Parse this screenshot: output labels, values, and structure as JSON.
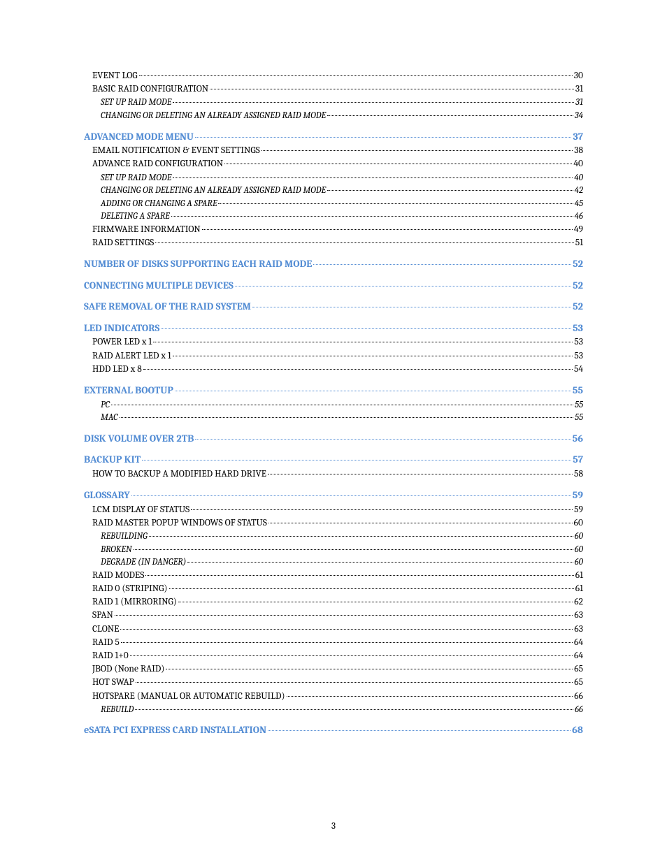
{
  "page_number": "3",
  "colors": {
    "heading": "#548dd4",
    "text": "#000000",
    "bg": "#ffffff"
  },
  "entries": [
    {
      "title": "EVENT LOG",
      "page": "30",
      "level": 2,
      "gap": false,
      "notop": true
    },
    {
      "title": "BASIC RAID CONFIGURATION",
      "page": "31",
      "level": 2,
      "gap": false
    },
    {
      "title": "SET UP RAID MODE",
      "page": "31",
      "level": 3,
      "gap": false
    },
    {
      "title": "CHANGING OR DELETING AN ALREADY ASSIGNED RAID MODE",
      "page": "34",
      "level": 3,
      "gap": false
    },
    {
      "title": "ADVANCED MODE MENU",
      "page": "37",
      "level": 1,
      "gap": true
    },
    {
      "title": "EMAIL NOTIFICATION & EVENT SETTINGS",
      "page": "38",
      "level": 2,
      "gap": false
    },
    {
      "title": "ADVANCE RAID CONFIGURATION",
      "page": "40",
      "level": 2,
      "gap": false
    },
    {
      "title": "SET UP RAID MODE",
      "page": "40",
      "level": 3,
      "gap": false
    },
    {
      "title": "CHANGING OR DELETING AN ALREADY ASSIGNED RAID MODE",
      "page": "42",
      "level": 3,
      "gap": false
    },
    {
      "title": "ADDING OR CHANGING A SPARE",
      "page": "45",
      "level": 3,
      "gap": false
    },
    {
      "title": "DELETING A SPARE",
      "page": "46",
      "level": 3,
      "gap": false
    },
    {
      "title": "FIRMWARE INFORMATION",
      "page": "49",
      "level": 2,
      "gap": false
    },
    {
      "title": "RAID SETTINGS",
      "page": "51",
      "level": 2,
      "gap": false
    },
    {
      "title": "NUMBER OF DISKS SUPPORTING EACH RAID MODE",
      "page": "52",
      "level": 1,
      "gap": true
    },
    {
      "title": "CONNECTING MULTIPLE DEVICES",
      "page": "52",
      "level": 1,
      "gap": true
    },
    {
      "title": "SAFE REMOVAL OF THE RAID SYSTEM",
      "page": "52",
      "level": 1,
      "gap": true
    },
    {
      "title": "LED INDICATORS",
      "page": "53",
      "level": 1,
      "gap": true
    },
    {
      "title": "POWER LED x 1",
      "page": "53",
      "level": 2,
      "gap": false
    },
    {
      "title": "RAID ALERT LED x 1",
      "page": "53",
      "level": 2,
      "gap": false
    },
    {
      "title": "HDD LED x 8",
      "page": "54",
      "level": 2,
      "gap": false
    },
    {
      "title": "EXTERNAL BOOTUP",
      "page": "55",
      "level": 1,
      "gap": true
    },
    {
      "title": "PC",
      "page": "55",
      "level": 3,
      "gap": false
    },
    {
      "title": "MAC",
      "page": "55",
      "level": 3,
      "gap": false
    },
    {
      "title": "DISK VOLUME OVER 2TB",
      "page": "56",
      "level": 1,
      "gap": true
    },
    {
      "title": "BACKUP KIT",
      "page": "57",
      "level": 1,
      "gap": true
    },
    {
      "title": "HOW TO BACKUP A MODIFIED HARD DRIVE",
      "page": "58",
      "level": 2,
      "gap": false
    },
    {
      "title": "GLOSSARY",
      "page": "59",
      "level": 1,
      "gap": true
    },
    {
      "title": "LCM DISPLAY OF STATUS",
      "page": "59",
      "level": 2,
      "gap": false
    },
    {
      "title": "RAID MASTER POPUP WINDOWS OF STATUS",
      "page": "60",
      "level": 2,
      "gap": false
    },
    {
      "title": "REBUILDING",
      "page": "60",
      "level": 3,
      "gap": false
    },
    {
      "title": "BROKEN",
      "page": "60",
      "level": 3,
      "gap": false
    },
    {
      "title": "DEGRADE (IN DANGER)",
      "page": "60",
      "level": 3,
      "gap": false
    },
    {
      "title": "RAID MODES",
      "page": "61",
      "level": 2,
      "gap": false
    },
    {
      "title": "RAID 0 (STRIPING)",
      "page": "61",
      "level": 2,
      "gap": false
    },
    {
      "title": "RAID 1 (MIRRORING)",
      "page": "62",
      "level": 2,
      "gap": false
    },
    {
      "title": "SPAN",
      "page": "63",
      "level": 2,
      "gap": false
    },
    {
      "title": "CLONE",
      "page": "63",
      "level": 2,
      "gap": false
    },
    {
      "title": "RAID 5",
      "page": "64",
      "level": 2,
      "gap": false
    },
    {
      "title": "RAID 1+0",
      "page": "64",
      "level": 2,
      "gap": false
    },
    {
      "title": "JBOD (None RAID)",
      "page": "65",
      "level": 2,
      "gap": false
    },
    {
      "title": "HOT SWAP",
      "page": "65",
      "level": 2,
      "gap": false
    },
    {
      "title": "HOTSPARE (MANUAL OR AUTOMATIC REBUILD)",
      "page": "66",
      "level": 2,
      "gap": false
    },
    {
      "title": "REBUILD",
      "page": "66",
      "level": 3,
      "gap": false
    },
    {
      "title": "eSATA PCI EXPRESS CARD INSTALLATION",
      "page": "68",
      "level": 1,
      "gap": true
    }
  ]
}
